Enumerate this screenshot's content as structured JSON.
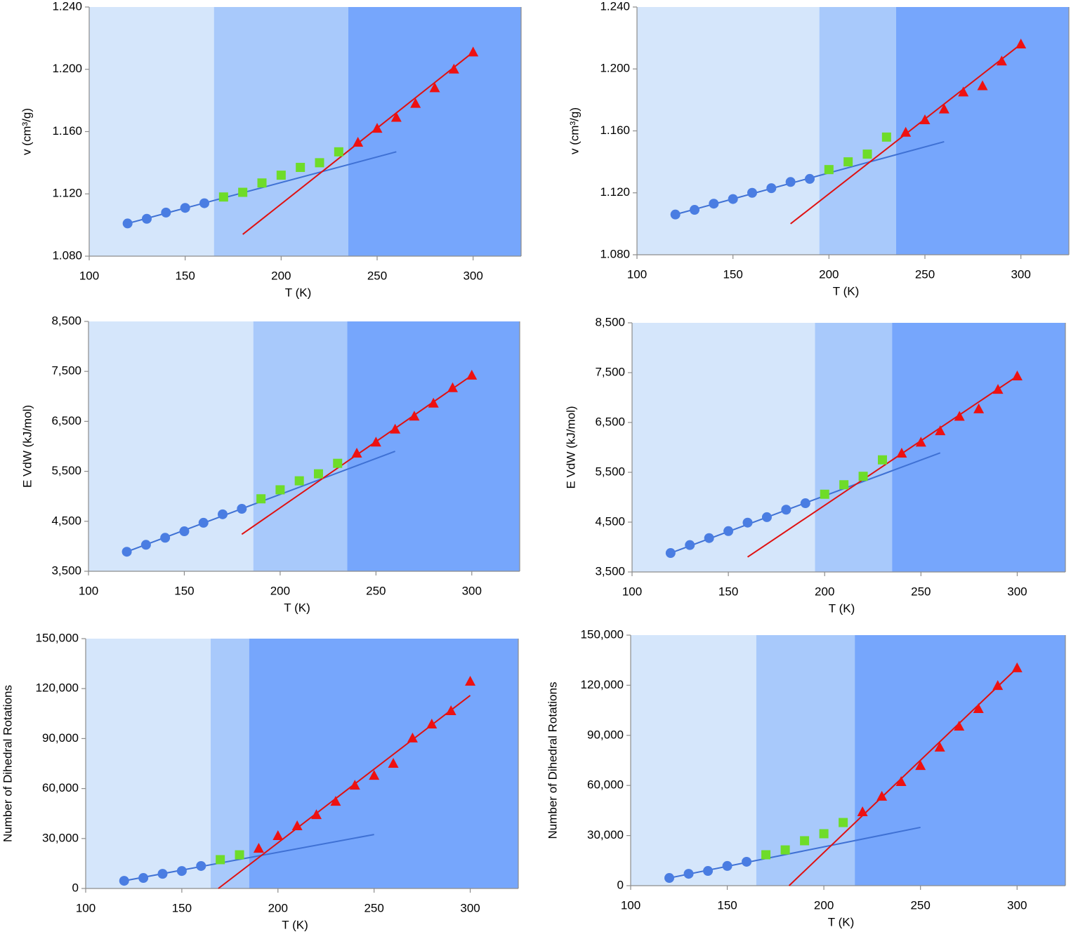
{
  "chart_data": [
    {
      "type": "scatter",
      "xlabel": "T (K)",
      "ylabel": "v (cm³/g)",
      "xlim": [
        100,
        325
      ],
      "ylim": [
        1.08,
        1.24
      ],
      "xticks": [
        100,
        150,
        200,
        250,
        300
      ],
      "yticks": [
        {
          "value": 1.08,
          "label": "1.080"
        },
        {
          "value": 1.12,
          "label": "1.120"
        },
        {
          "value": 1.16,
          "label": "1.160"
        },
        {
          "value": 1.2,
          "label": "1.200"
        },
        {
          "value": 1.24,
          "label": "1.240"
        }
      ],
      "regions": [
        {
          "x": [
            100,
            165
          ],
          "color": "#d5e6fb"
        },
        {
          "x": [
            165,
            235
          ],
          "color": "#a8c9fb"
        },
        {
          "x": [
            235,
            325
          ],
          "color": "#76a6fc"
        }
      ],
      "series": [
        {
          "marker": "circle",
          "color": "#4a7de2",
          "x": [
            120,
            130,
            140,
            150,
            160
          ],
          "values": [
            1.101,
            1.104,
            1.108,
            1.111,
            1.114
          ]
        },
        {
          "marker": "square",
          "color": "#6edc29",
          "x": [
            170,
            180,
            190,
            200,
            210,
            220,
            230
          ],
          "values": [
            1.118,
            1.121,
            1.127,
            1.132,
            1.137,
            1.14,
            1.147
          ]
        },
        {
          "marker": "triangle",
          "color": "#ee1111",
          "x": [
            240,
            250,
            260,
            270,
            280,
            290,
            300
          ],
          "values": [
            1.153,
            1.162,
            1.169,
            1.178,
            1.188,
            1.2,
            1.211
          ]
        }
      ],
      "fits": [
        {
          "color": "#3f71d4",
          "x": [
            120,
            260
          ],
          "values": [
            1.101,
            1.147
          ]
        },
        {
          "color": "#e01010",
          "x": [
            180,
            300
          ],
          "values": [
            1.094,
            1.211
          ]
        }
      ]
    },
    {
      "type": "scatter",
      "xlabel": "T (K)",
      "ylabel": "v (cm³/g)",
      "xlim": [
        100,
        325
      ],
      "ylim": [
        1.08,
        1.24
      ],
      "xticks": [
        100,
        150,
        200,
        250,
        300
      ],
      "yticks": [
        {
          "value": 1.08,
          "label": "1.080"
        },
        {
          "value": 1.12,
          "label": "1.120"
        },
        {
          "value": 1.16,
          "label": "1.160"
        },
        {
          "value": 1.2,
          "label": "1.200"
        },
        {
          "value": 1.24,
          "label": "1.240"
        }
      ],
      "regions": [
        {
          "x": [
            100,
            195
          ],
          "color": "#d5e6fb"
        },
        {
          "x": [
            195,
            235
          ],
          "color": "#a8c9fb"
        },
        {
          "x": [
            235,
            325
          ],
          "color": "#76a6fc"
        }
      ],
      "series": [
        {
          "marker": "circle",
          "color": "#4a7de2",
          "x": [
            120,
            130,
            140,
            150,
            160,
            170,
            180,
            190
          ],
          "values": [
            1.106,
            1.109,
            1.113,
            1.116,
            1.12,
            1.123,
            1.127,
            1.129
          ]
        },
        {
          "marker": "square",
          "color": "#6edc29",
          "x": [
            200,
            210,
            220,
            230
          ],
          "values": [
            1.135,
            1.14,
            1.145,
            1.156
          ]
        },
        {
          "marker": "triangle",
          "color": "#ee1111",
          "x": [
            240,
            250,
            260,
            270,
            280,
            290,
            300
          ],
          "values": [
            1.159,
            1.167,
            1.174,
            1.185,
            1.189,
            1.205,
            1.216
          ]
        }
      ],
      "fits": [
        {
          "color": "#3f71d4",
          "x": [
            120,
            260
          ],
          "values": [
            1.106,
            1.153
          ]
        },
        {
          "color": "#e01010",
          "x": [
            180,
            300
          ],
          "values": [
            1.1,
            1.216
          ]
        }
      ]
    },
    {
      "type": "scatter",
      "xlabel": "T (K)",
      "ylabel": "E VdW (kJ/mol)",
      "xlim": [
        100,
        325
      ],
      "ylim": [
        3500,
        8500
      ],
      "xticks": [
        100,
        150,
        200,
        250,
        300
      ],
      "yticks": [
        {
          "value": 3500,
          "label": "3,500"
        },
        {
          "value": 4500,
          "label": "4,500"
        },
        {
          "value": 5500,
          "label": "5,500"
        },
        {
          "value": 6500,
          "label": "6,500"
        },
        {
          "value": 7500,
          "label": "7,500"
        },
        {
          "value": 8500,
          "label": "8,500"
        }
      ],
      "regions": [
        {
          "x": [
            100,
            186
          ],
          "color": "#d5e6fb"
        },
        {
          "x": [
            186,
            235
          ],
          "color": "#a8c9fb"
        },
        {
          "x": [
            235,
            325
          ],
          "color": "#76a6fc"
        }
      ],
      "series": [
        {
          "marker": "circle",
          "color": "#4a7de2",
          "x": [
            120,
            130,
            140,
            150,
            160,
            170,
            180
          ],
          "values": [
            3890,
            4030,
            4170,
            4300,
            4470,
            4640,
            4750
          ]
        },
        {
          "marker": "square",
          "color": "#6edc29",
          "x": [
            190,
            200,
            210,
            220,
            230
          ],
          "values": [
            4950,
            5130,
            5310,
            5450,
            5660
          ]
        },
        {
          "marker": "triangle",
          "color": "#ee1111",
          "x": [
            240,
            250,
            260,
            270,
            280,
            290,
            300
          ],
          "values": [
            5860,
            6080,
            6340,
            6600,
            6860,
            7170,
            7420
          ]
        }
      ],
      "fits": [
        {
          "color": "#3f71d4",
          "x": [
            120,
            260
          ],
          "values": [
            3890,
            5900
          ]
        },
        {
          "color": "#e01010",
          "x": [
            180,
            300
          ],
          "values": [
            4240,
            7420
          ]
        }
      ]
    },
    {
      "type": "scatter",
      "xlabel": "T (K)",
      "ylabel": "E VdW (kJ/mol)",
      "xlim": [
        100,
        325
      ],
      "ylim": [
        3500,
        8500
      ],
      "xticks": [
        100,
        150,
        200,
        250,
        300
      ],
      "yticks": [
        {
          "value": 3500,
          "label": "3,500"
        },
        {
          "value": 4500,
          "label": "4,500"
        },
        {
          "value": 5500,
          "label": "5,500"
        },
        {
          "value": 6500,
          "label": "6,500"
        },
        {
          "value": 7500,
          "label": "7,500"
        },
        {
          "value": 8500,
          "label": "8,500"
        }
      ],
      "regions": [
        {
          "x": [
            100,
            195
          ],
          "color": "#d5e6fb"
        },
        {
          "x": [
            195,
            235
          ],
          "color": "#a8c9fb"
        },
        {
          "x": [
            235,
            325
          ],
          "color": "#76a6fc"
        }
      ],
      "series": [
        {
          "marker": "circle",
          "color": "#4a7de2",
          "x": [
            120,
            130,
            140,
            150,
            160,
            170,
            180,
            190
          ],
          "values": [
            3880,
            4040,
            4180,
            4320,
            4490,
            4600,
            4750,
            4880
          ]
        },
        {
          "marker": "square",
          "color": "#6edc29",
          "x": [
            200,
            210,
            220,
            230
          ],
          "values": [
            5060,
            5250,
            5420,
            5750
          ]
        },
        {
          "marker": "triangle",
          "color": "#ee1111",
          "x": [
            240,
            250,
            260,
            270,
            280,
            290,
            300
          ],
          "values": [
            5880,
            6100,
            6330,
            6620,
            6770,
            7160,
            7430
          ]
        }
      ],
      "fits": [
        {
          "color": "#3f71d4",
          "x": [
            120,
            260
          ],
          "values": [
            3880,
            5890
          ]
        },
        {
          "color": "#e01010",
          "x": [
            160,
            300
          ],
          "values": [
            3800,
            7430
          ]
        }
      ]
    },
    {
      "type": "scatter",
      "xlabel": "T (K)",
      "ylabel": "Number of Dihedral Rotations",
      "xlim": [
        100,
        325
      ],
      "ylim": [
        0,
        150000
      ],
      "xticks": [
        100,
        150,
        200,
        250,
        300
      ],
      "yticks": [
        0,
        {
          "value": 30000,
          "label": "30,000"
        },
        {
          "value": 60000,
          "label": "60,000"
        },
        {
          "value": 90000,
          "label": "90,000"
        },
        {
          "value": 120000,
          "label": "120,000"
        },
        {
          "value": 150000,
          "label": "150,000"
        }
      ],
      "regions": [
        {
          "x": [
            100,
            165
          ],
          "color": "#d5e6fb"
        },
        {
          "x": [
            165,
            185
          ],
          "color": "#a8c9fb"
        },
        {
          "x": [
            185,
            325
          ],
          "color": "#76a6fc"
        }
      ],
      "series": [
        {
          "marker": "circle",
          "color": "#4a7de2",
          "x": [
            120,
            130,
            140,
            150,
            160
          ],
          "values": [
            4600,
            6300,
            8800,
            10500,
            13500
          ]
        },
        {
          "marker": "square",
          "color": "#6edc29",
          "x": [
            170,
            180
          ],
          "values": [
            17300,
            20200
          ]
        },
        {
          "marker": "triangle",
          "color": "#ee1111",
          "x": [
            190,
            200,
            210,
            220,
            230,
            240,
            250,
            260,
            270,
            280,
            290,
            300
          ],
          "values": [
            24000,
            31600,
            37500,
            44200,
            52200,
            61900,
            67800,
            75000,
            90200,
            98600,
            106600,
            124300
          ]
        }
      ],
      "fits": [
        {
          "color": "#3f71d4",
          "x": [
            120,
            250
          ],
          "values": [
            4600,
            32400
          ]
        },
        {
          "color": "#e01010",
          "x": [
            169,
            300
          ],
          "values": [
            0,
            115900
          ]
        }
      ]
    },
    {
      "type": "scatter",
      "xlabel": "T (K)",
      "ylabel": "Number of Dihedral Rotations",
      "xlim": [
        100,
        325
      ],
      "ylim": [
        0,
        150000
      ],
      "xticks": [
        100,
        150,
        200,
        250,
        300
      ],
      "yticks": [
        0,
        {
          "value": 30000,
          "label": "30,000"
        },
        {
          "value": 60000,
          "label": "60,000"
        },
        {
          "value": 90000,
          "label": "90,000"
        },
        {
          "value": 120000,
          "label": "120,000"
        },
        {
          "value": 150000,
          "label": "150,000"
        }
      ],
      "regions": [
        {
          "x": [
            100,
            165
          ],
          "color": "#d5e6fb"
        },
        {
          "x": [
            165,
            216
          ],
          "color": "#a8c9fb"
        },
        {
          "x": [
            216,
            325
          ],
          "color": "#76a6fc"
        }
      ],
      "series": [
        {
          "marker": "circle",
          "color": "#4a7de2",
          "x": [
            120,
            130,
            140,
            150,
            160
          ],
          "values": [
            4600,
            7100,
            8800,
            11800,
            14300
          ]
        },
        {
          "marker": "square",
          "color": "#6edc29",
          "x": [
            170,
            180,
            190,
            200,
            210
          ],
          "values": [
            18500,
            21400,
            26900,
            31100,
            37800
          ]
        },
        {
          "marker": "triangle",
          "color": "#ee1111",
          "x": [
            220,
            230,
            240,
            250,
            260,
            270,
            280,
            290,
            300
          ],
          "values": [
            44100,
            53400,
            62200,
            71800,
            82800,
            95400,
            105900,
            119700,
            130300
          ]
        }
      ],
      "fits": [
        {
          "color": "#3f71d4",
          "x": [
            120,
            250
          ],
          "values": [
            4600,
            34900
          ]
        },
        {
          "color": "#e01010",
          "x": [
            182,
            300
          ],
          "values": [
            0,
            130300
          ]
        }
      ]
    }
  ]
}
